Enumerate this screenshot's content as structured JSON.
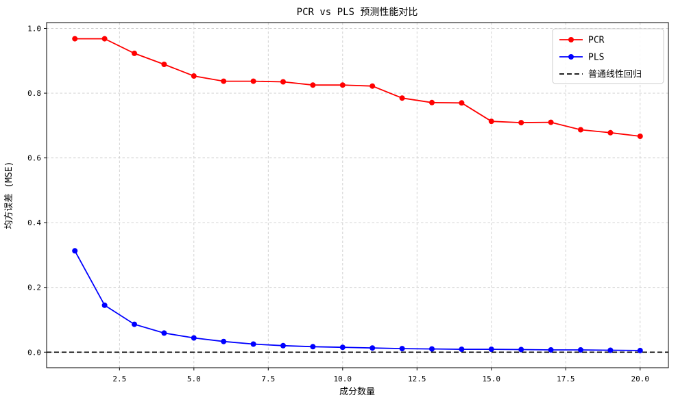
{
  "chart_data": {
    "type": "line",
    "title": "PCR vs PLS 预测性能对比",
    "xlabel": "成分数量",
    "ylabel": "均方误差 (MSE)",
    "x": [
      1,
      2,
      3,
      4,
      5,
      6,
      7,
      8,
      9,
      10,
      11,
      12,
      13,
      14,
      15,
      16,
      17,
      18,
      19,
      20
    ],
    "series": [
      {
        "name": "PCR",
        "color": "#ff0000",
        "marker": "circle",
        "values": [
          0.968,
          0.968,
          0.923,
          0.889,
          0.853,
          0.837,
          0.837,
          0.835,
          0.825,
          0.825,
          0.822,
          0.785,
          0.771,
          0.77,
          0.713,
          0.709,
          0.71,
          0.687,
          0.678,
          0.667
        ]
      },
      {
        "name": "PLS",
        "color": "#0000ff",
        "marker": "circle",
        "values": [
          0.313,
          0.145,
          0.086,
          0.059,
          0.044,
          0.033,
          0.025,
          0.02,
          0.017,
          0.015,
          0.013,
          0.011,
          0.01,
          0.009,
          0.009,
          0.008,
          0.007,
          0.007,
          0.006,
          0.005
        ]
      }
    ],
    "baseline": {
      "name": "普通线性回归",
      "value": 0.0,
      "color": "#000000",
      "style": "dashed"
    },
    "xticks": [
      "2.5",
      "5.0",
      "7.5",
      "10.0",
      "12.5",
      "15.0",
      "17.5",
      "20.0"
    ],
    "yticks": [
      "0.0",
      "0.2",
      "0.4",
      "0.6",
      "0.8",
      "1.0"
    ],
    "xlim": [
      0.05,
      20.95
    ],
    "ylim": [
      -0.048,
      1.018
    ],
    "grid": true,
    "legend_position": "upper right"
  }
}
